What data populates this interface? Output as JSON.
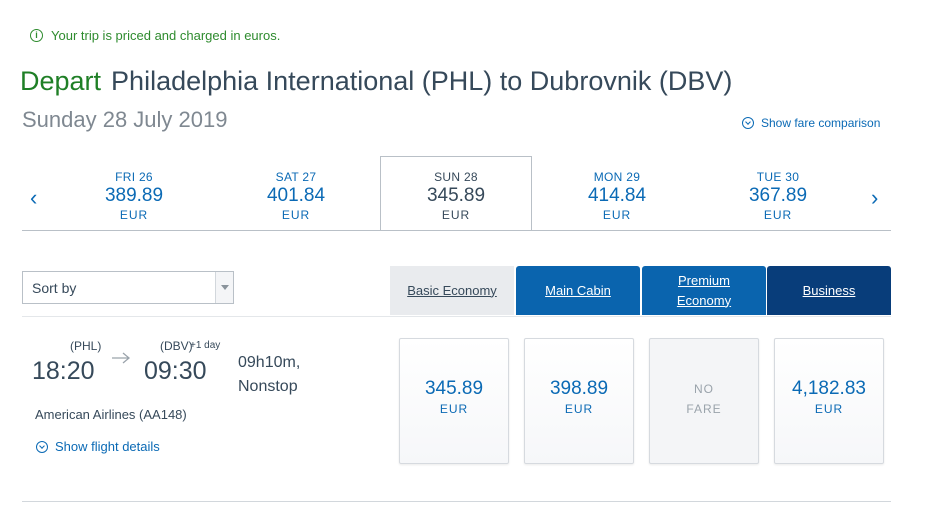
{
  "notice": {
    "text": "Your trip is priced and charged in euros."
  },
  "header": {
    "depart_label": "Depart",
    "route": "Philadelphia International (PHL) to Dubrovnik (DBV)",
    "date": "Sunday 28 July 2019",
    "fare_comparison_link": "Show fare comparison"
  },
  "date_bar": {
    "prev_arrow": "‹",
    "next_arrow": "›",
    "dates": [
      {
        "day": "FRI 26",
        "price": "389.89",
        "currency": "EUR",
        "selected": false
      },
      {
        "day": "SAT 27",
        "price": "401.84",
        "currency": "EUR",
        "selected": false
      },
      {
        "day": "SUN 28",
        "price": "345.89",
        "currency": "EUR",
        "selected": true
      },
      {
        "day": "MON 29",
        "price": "414.84",
        "currency": "EUR",
        "selected": false
      },
      {
        "day": "TUE 30",
        "price": "367.89",
        "currency": "EUR",
        "selected": false
      }
    ]
  },
  "sort": {
    "label": "Sort by"
  },
  "cabins": {
    "basic": "Basic Economy",
    "main": "Main Cabin",
    "premium_line1": "Premium",
    "premium_line2": "Economy",
    "business": "Business"
  },
  "flight": {
    "origin_code": "(PHL)",
    "depart_time": "18:20",
    "dest_code": "(DBV)",
    "next_day": "+1 day",
    "arrive_time": "09:30",
    "duration": "09h10m,",
    "stops": "Nonstop",
    "airline": "American Airlines (AA148)",
    "details_link": "Show flight details",
    "fares": {
      "basic": {
        "amount": "345.89",
        "currency": "EUR"
      },
      "main": {
        "amount": "398.89",
        "currency": "EUR"
      },
      "premium": {
        "line1": "NO",
        "line2": "FARE"
      },
      "business": {
        "amount": "4,182.83",
        "currency": "EUR"
      }
    }
  },
  "colors": {
    "accent_blue": "#0b6ab5",
    "tab_blue": "#0a64ae",
    "tab_dark_blue": "#083d7a",
    "depart_green": "#1f7f26"
  }
}
